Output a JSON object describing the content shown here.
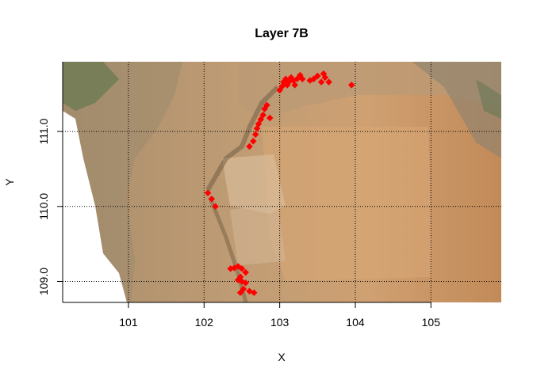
{
  "chart_data": {
    "type": "scatter",
    "title": "Layer 7B",
    "xlabel": "X",
    "ylabel": "Y",
    "xlim": [
      100.13,
      105.93
    ],
    "ylim": [
      108.72,
      111.93
    ],
    "xticks": [
      101,
      102,
      103,
      104,
      105
    ],
    "xtick_labels": [
      "101",
      "102",
      "103",
      "104",
      "105"
    ],
    "yticks": [
      109.0,
      110.0,
      111.0
    ],
    "ytick_labels": [
      "109.0",
      "110.0",
      "111.0"
    ],
    "grid": true,
    "grid_style": "dotted",
    "background": "orthophoto of excavation surface",
    "point_color": "#ff0000",
    "points": [
      [
        102.05,
        110.18
      ],
      [
        102.1,
        110.1
      ],
      [
        102.15,
        110.0
      ],
      [
        102.35,
        109.17
      ],
      [
        102.4,
        109.18
      ],
      [
        102.45,
        109.2
      ],
      [
        102.5,
        109.17
      ],
      [
        102.55,
        109.12
      ],
      [
        102.48,
        109.06
      ],
      [
        102.45,
        109.02
      ],
      [
        102.5,
        109.0
      ],
      [
        102.55,
        108.98
      ],
      [
        102.52,
        108.9
      ],
      [
        102.48,
        108.85
      ],
      [
        102.6,
        108.87
      ],
      [
        102.66,
        108.85
      ],
      [
        102.6,
        110.8
      ],
      [
        102.65,
        110.87
      ],
      [
        102.68,
        110.96
      ],
      [
        102.7,
        111.04
      ],
      [
        102.72,
        111.1
      ],
      [
        102.75,
        111.16
      ],
      [
        102.78,
        111.22
      ],
      [
        102.8,
        111.3
      ],
      [
        102.83,
        111.35
      ],
      [
        102.87,
        111.18
      ],
      [
        103.0,
        111.55
      ],
      [
        103.03,
        111.6
      ],
      [
        103.05,
        111.66
      ],
      [
        103.08,
        111.7
      ],
      [
        103.1,
        111.62
      ],
      [
        103.12,
        111.66
      ],
      [
        103.15,
        111.72
      ],
      [
        103.18,
        111.68
      ],
      [
        103.2,
        111.62
      ],
      [
        103.23,
        111.7
      ],
      [
        103.27,
        111.75
      ],
      [
        103.3,
        111.7
      ],
      [
        103.4,
        111.68
      ],
      [
        103.45,
        111.7
      ],
      [
        103.5,
        111.74
      ],
      [
        103.55,
        111.66
      ],
      [
        103.58,
        111.77
      ],
      [
        103.6,
        111.72
      ],
      [
        103.65,
        111.66
      ],
      [
        103.95,
        111.62
      ]
    ]
  }
}
